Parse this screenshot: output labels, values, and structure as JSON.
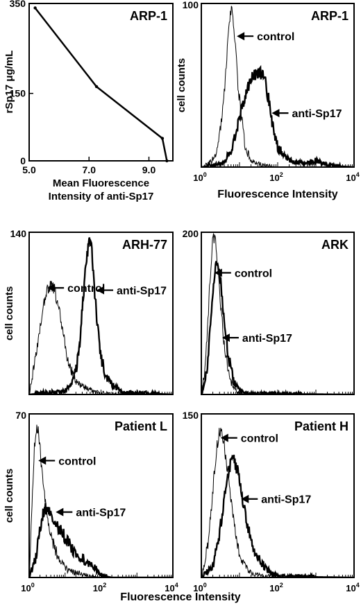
{
  "figure": {
    "bottom_xlabel": "Fluorescence Intensity"
  },
  "chart_data": [
    {
      "type": "line",
      "title": "ARP-1",
      "ylabel": "rSp17 μg/mL",
      "xlabel_line1": "Mean Fluorescence",
      "xlabel_line2": "Intensity of anti-Sp17",
      "xlim": [
        5.0,
        9.8
      ],
      "ylim": [
        0,
        350
      ],
      "x_ticks": [
        "5.0",
        "7.0",
        "9.0"
      ],
      "x_tick_values": [
        5.0,
        7.0,
        9.0
      ],
      "y_ticks": [
        "350",
        "150",
        "0"
      ],
      "y_tick_values": [
        350,
        150,
        0
      ],
      "x": [
        5.2,
        7.25,
        9.45,
        9.6
      ],
      "y": [
        340,
        165,
        50,
        0
      ]
    },
    {
      "type": "area",
      "title": "ARP-1",
      "ylabel": "cell counts",
      "xlabel": "Fluorescence Intensity",
      "x_scale": "log",
      "xlim": [
        1,
        10000
      ],
      "ylim": [
        0,
        100
      ],
      "y_max_label": "100",
      "x_ticks": [
        "10",
        "10",
        "10"
      ],
      "x_tick_exponents": [
        "0",
        "2",
        "4"
      ],
      "x_tick_values": [
        1,
        100,
        10000
      ],
      "annotations": [
        {
          "text": "control",
          "series": "control",
          "x": 8.5,
          "y": 80
        },
        {
          "text": "anti-Sp17",
          "series": "anti-Sp17",
          "x": 70,
          "y": 33
        }
      ],
      "series": [
        {
          "kind": "thin",
          "x": [
            1,
            1.6,
            2.5,
            3.5,
            4.5,
            5.5,
            6.5,
            7.5,
            9,
            11,
            14,
            20,
            40,
            100,
            10000
          ],
          "y": [
            0,
            2,
            8,
            30,
            62,
            90,
            97,
            80,
            52,
            32,
            12,
            4,
            1,
            0,
            0
          ]
        },
        {
          "kind": "thick",
          "x": [
            1,
            2,
            4,
            6,
            8,
            10,
            13,
            17,
            22,
            28,
            35,
            45,
            60,
            80,
            100,
            200,
            500,
            1000,
            2000,
            10000
          ],
          "y": [
            0,
            1,
            3,
            10,
            20,
            31,
            40,
            49,
            55,
            58,
            58,
            54,
            40,
            20,
            12,
            4,
            2,
            4,
            1,
            0
          ]
        }
      ]
    },
    {
      "type": "area",
      "title": "ARH-77",
      "ylabel": "cell counts",
      "x_scale": "log",
      "xlim": [
        1,
        10000
      ],
      "ylim": [
        0,
        140
      ],
      "y_max_label": "140",
      "annotations": [
        {
          "text": "control",
          "series": "control",
          "x": 3.2,
          "y": 92
        },
        {
          "text": "anti-Sp17",
          "series": "anti-Sp17",
          "x": 75,
          "y": 90
        }
      ],
      "series": [
        {
          "kind": "thin",
          "x": [
            1,
            1.5,
            2,
            2.5,
            3,
            3.5,
            4,
            5,
            6,
            7,
            9,
            12,
            15,
            20,
            30,
            60,
            100,
            10000
          ],
          "y": [
            0,
            30,
            58,
            78,
            88,
            92,
            95,
            90,
            80,
            70,
            50,
            30,
            20,
            12,
            7,
            3,
            1,
            0
          ]
        },
        {
          "kind": "thick",
          "x": [
            1,
            10,
            15,
            20,
            25,
            30,
            35,
            40,
            45,
            50,
            55,
            60,
            70,
            80,
            100,
            130,
            200,
            400,
            10000
          ],
          "y": [
            0,
            3,
            8,
            20,
            42,
            72,
            98,
            118,
            128,
            132,
            125,
            110,
            80,
            60,
            32,
            18,
            8,
            2,
            0
          ]
        }
      ]
    },
    {
      "type": "area",
      "title": "ARK",
      "ylabel": "",
      "x_scale": "log",
      "xlim": [
        1,
        10000
      ],
      "ylim": [
        0,
        200
      ],
      "y_max_label": "200",
      "annotations": [
        {
          "text": "control",
          "series": "control",
          "x": 2.2,
          "y": 150
        },
        {
          "text": "anti-Sp17",
          "series": "anti-Sp17",
          "x": 3.5,
          "y": 70
        }
      ],
      "series": [
        {
          "kind": "thin",
          "x": [
            1,
            1.3,
            1.6,
            1.9,
            2.1,
            2.4,
            2.8,
            3.2,
            4,
            5,
            6,
            8,
            10,
            10000
          ],
          "y": [
            0,
            40,
            120,
            180,
            195,
            185,
            150,
            110,
            60,
            30,
            15,
            5,
            1,
            0
          ]
        },
        {
          "kind": "thick",
          "x": [
            1,
            1.4,
            1.8,
            2.2,
            2.5,
            2.8,
            3.2,
            3.6,
            4.2,
            5,
            6,
            7,
            9,
            12,
            20,
            10000
          ],
          "y": [
            0,
            30,
            100,
            150,
            160,
            155,
            140,
            110,
            80,
            50,
            30,
            18,
            8,
            3,
            1,
            0
          ]
        }
      ]
    },
    {
      "type": "area",
      "title": "Patient L",
      "ylabel": "cell counts",
      "x_scale": "log",
      "xlim": [
        1,
        10000
      ],
      "ylim": [
        0,
        70
      ],
      "y_max_label": "70",
      "x_ticks": [
        "10",
        "10",
        "10"
      ],
      "x_tick_exponents": [
        "0",
        "2",
        "4"
      ],
      "x_tick_values": [
        1,
        100,
        10000
      ],
      "annotations": [
        {
          "text": "control",
          "series": "control",
          "x": 1.8,
          "y": 50
        },
        {
          "text": "anti-Sp17",
          "series": "anti-Sp17",
          "x": 5.5,
          "y": 28
        }
      ],
      "series": [
        {
          "kind": "thin",
          "x": [
            1,
            1.2,
            1.4,
            1.6,
            1.8,
            2,
            2.5,
            3,
            4,
            6,
            8,
            12,
            20,
            40,
            100,
            10000
          ],
          "y": [
            0,
            30,
            55,
            65,
            62,
            55,
            40,
            28,
            18,
            10,
            6,
            3,
            2,
            1,
            0,
            0
          ]
        },
        {
          "kind": "thick",
          "x": [
            1,
            1.5,
            2,
            2.5,
            3,
            4,
            5,
            6,
            8,
            10,
            15,
            20,
            30,
            50,
            80,
            100,
            200,
            10000
          ],
          "y": [
            0,
            8,
            20,
            28,
            30,
            27,
            23,
            22,
            20,
            17,
            13,
            10,
            8,
            6,
            3,
            1,
            0,
            0
          ]
        }
      ]
    },
    {
      "type": "area",
      "title": "Patient H",
      "ylabel": "",
      "x_scale": "log",
      "xlim": [
        1,
        10000
      ],
      "ylim": [
        0,
        150
      ],
      "y_max_label": "150",
      "x_ticks": [
        "10",
        "10",
        "10"
      ],
      "x_tick_exponents": [
        "0",
        "2",
        "4"
      ],
      "x_tick_values": [
        1,
        100,
        10000
      ],
      "annotations": [
        {
          "text": "control",
          "series": "control",
          "x": 3.2,
          "y": 128
        },
        {
          "text": "anti-Sp17",
          "series": "anti-Sp17",
          "x": 11,
          "y": 72
        }
      ],
      "series": [
        {
          "kind": "thin",
          "x": [
            1,
            1.5,
            2,
            2.5,
            3,
            3.5,
            4,
            5,
            6,
            8,
            10,
            14,
            20,
            40,
            10000
          ],
          "y": [
            0,
            30,
            80,
            118,
            135,
            132,
            120,
            95,
            70,
            40,
            22,
            10,
            4,
            1,
            0
          ]
        },
        {
          "kind": "thick",
          "x": [
            1,
            2,
            3,
            4,
            5,
            6,
            7,
            8,
            10,
            12,
            16,
            20,
            30,
            50,
            80,
            100,
            10000
          ],
          "y": [
            0,
            10,
            40,
            75,
            95,
            105,
            108,
            103,
            90,
            72,
            50,
            35,
            18,
            8,
            3,
            1,
            0
          ]
        }
      ]
    }
  ]
}
